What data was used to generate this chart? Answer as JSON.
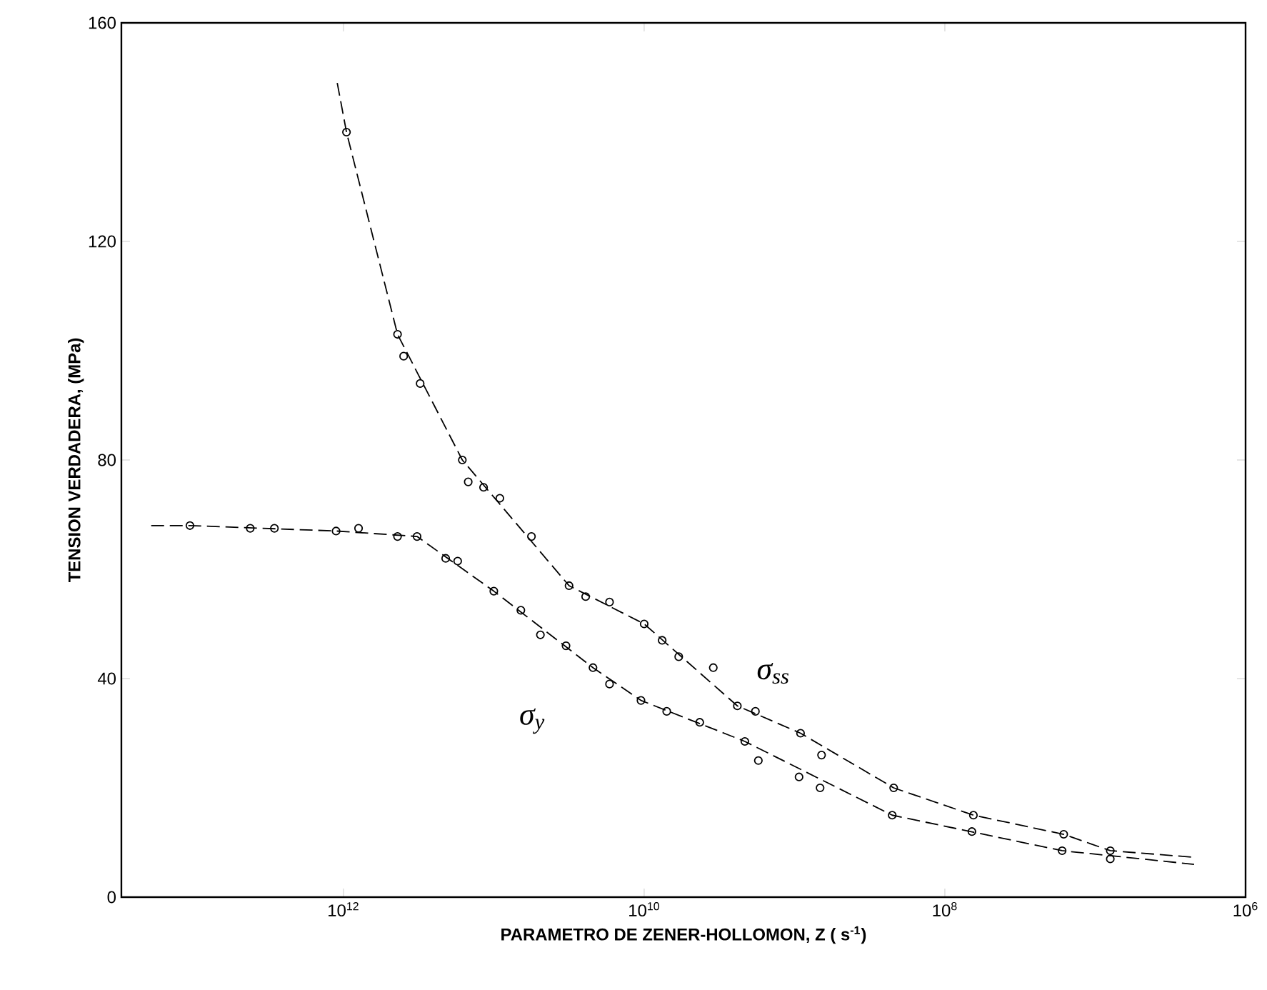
{
  "chart_data": {
    "type": "line",
    "xlabel": "PARAMETRO DE ZENER-HOLLOMON, Z ( s$^{-1}$)",
    "ylabel": "TENSION VERDADERA, (MPa)",
    "log": "x",
    "xlim": [
      30000000000000.0,
      1000000.0
    ],
    "ylim": [
      0,
      160
    ],
    "xticks": [
      {
        "value": 1000000000000.0,
        "label": "10$^{12}$"
      },
      {
        "value": 10000000000.0,
        "label": "10$^{10}$"
      },
      {
        "value": 100000000.0,
        "label": "10$^{8}$"
      },
      {
        "value": 1000000.0,
        "label": "10$^{6}$"
      }
    ],
    "yticks": [
      0,
      40,
      80,
      120,
      160
    ],
    "grid": false,
    "legend": false,
    "series": [
      {
        "name": "σ$_{ss}$",
        "color": "#000000",
        "line_style": "dashed",
        "marker": "none",
        "x": [
          1100000000000.0,
          955000000000.0,
          437000000000.0,
          162000000000.0,
          31600000000.0,
          10000000000.0,
          2400000000.0,
          912000000.0,
          219000000.0,
          64600000.0,
          16200000.0,
          7940000.0,
          2200000.0
        ],
        "values": [
          149,
          140,
          103,
          80,
          57,
          50,
          35,
          30,
          20,
          15,
          11.5,
          8.5,
          7.3
        ]
      },
      {
        "name": "σ$_{y}$",
        "color": "#000000",
        "line_style": "dashed",
        "marker": "none",
        "x": [
          19000000000000.0,
          10500000000000.0,
          1120000000000.0,
          324000000000.0,
          100000000000.0,
          21900000000.0,
          10500000000.0,
          2140000000.0,
          224000000.0,
          16600000.0,
          2200000.0
        ],
        "values": [
          68,
          68,
          67,
          66,
          56,
          42,
          36,
          28.5,
          15,
          8.5,
          6
        ]
      },
      {
        "type": "scatter",
        "color": "#000000",
        "marker": "circle",
        "x": [
          955000000000.0,
          437000000000.0,
          398000000000.0,
          309000000000.0,
          162000000000.0,
          148000000000.0,
          117000000000.0,
          91200000000.0,
          56200000000.0,
          31600000000.0,
          24500000000.0,
          17000000000.0,
          10000000000.0,
          7590000000.0,
          5890000000.0,
          3470000000.0,
          2400000000.0,
          1820000000.0,
          912000000.0,
          661000000.0,
          219000000.0,
          64600000.0,
          16200000.0,
          7940000.0
        ],
        "values": [
          140,
          103,
          99,
          94,
          80,
          76,
          75,
          73,
          66,
          57,
          55,
          54,
          50,
          47,
          44,
          42,
          35,
          34,
          30,
          26,
          20,
          15,
          11.5,
          8.5
        ]
      },
      {
        "type": "scatter",
        "color": "#000000",
        "marker": "circle",
        "x": [
          10500000000000.0,
          4170000000000.0,
          2880000000000.0,
          1120000000000.0,
          794000000000.0,
          437000000000.0,
          324000000000.0,
          209000000000.0,
          174000000000.0,
          100000000000.0,
          66100000000.0,
          49000000000.0,
          33100000000.0,
          21900000000.0,
          17000000000.0,
          10500000000.0,
          7080000000.0,
          4270000000.0,
          2140000000.0,
          1740000000.0,
          933000000.0,
          676000000.0,
          224000000.0,
          66100000.0,
          16600000.0,
          7940000.0
        ],
        "values": [
          68,
          67.5,
          67.5,
          67,
          67.5,
          66,
          66,
          62,
          61.5,
          56,
          52.5,
          48,
          46,
          42,
          39,
          36,
          34,
          32,
          28.5,
          25,
          22,
          20,
          15,
          12,
          8.5,
          7
        ]
      }
    ]
  }
}
